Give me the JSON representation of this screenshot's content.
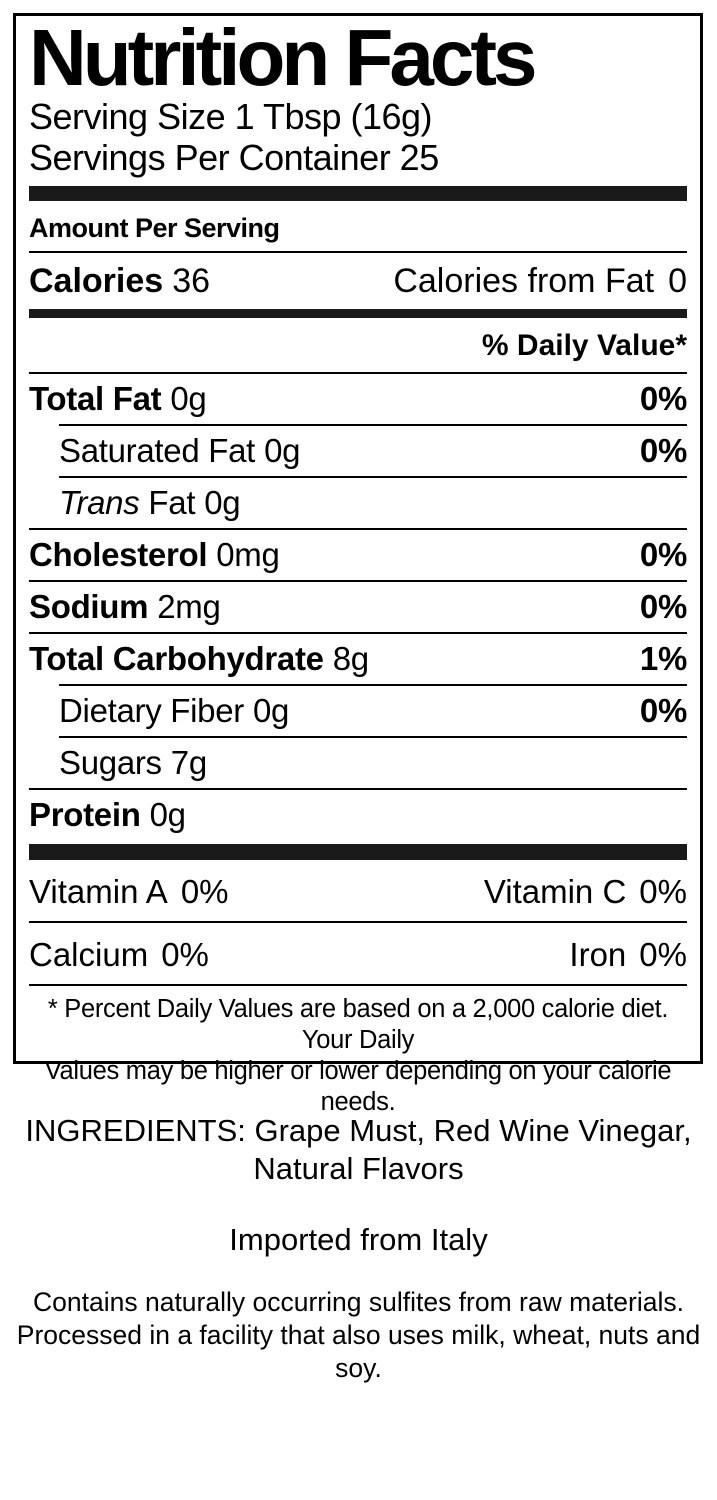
{
  "colors": {
    "text": "#000000",
    "divider_bar": "#1a1a1a",
    "background": "#ffffff"
  },
  "label": {
    "title": "Nutrition Facts",
    "serving_size": "Serving Size 1 Tbsp (16g)",
    "servings_per_container": "Servings Per Container 25",
    "amount_per_serving": "Amount Per Serving",
    "calories_label": "Calories",
    "calories_value": "36",
    "calories_from_fat_label": "Calories from Fat",
    "calories_from_fat_value": "0",
    "daily_value_header": "% Daily Value*",
    "rows": {
      "total_fat": {
        "name": "Total Fat",
        "amount": "0g",
        "dv": "0%"
      },
      "saturated_fat": {
        "name": "Saturated Fat",
        "amount": "0g",
        "dv": "0%"
      },
      "trans_fat": {
        "name_italic": "Trans",
        "name_rest": "Fat",
        "amount": "0g"
      },
      "cholesterol": {
        "name": "Cholesterol",
        "amount": "0mg",
        "dv": "0%"
      },
      "sodium": {
        "name": "Sodium",
        "amount": "2mg",
        "dv": "0%"
      },
      "total_carbohydrate": {
        "name": "Total Carbohydrate",
        "amount": "8g",
        "dv": "1%"
      },
      "dietary_fiber": {
        "name": "Dietary Fiber",
        "amount": "0g",
        "dv": "0%"
      },
      "sugars": {
        "name": "Sugars",
        "amount": "7g"
      },
      "protein": {
        "name": "Protein",
        "amount": "0g"
      }
    },
    "micronutrients": {
      "vitamin_a": {
        "name": "Vitamin A",
        "value": "0%"
      },
      "vitamin_c": {
        "name": "Vitamin C",
        "value": "0%"
      },
      "calcium": {
        "name": "Calcium",
        "value": "0%"
      },
      "iron": {
        "name": "Iron",
        "value": "0%"
      }
    },
    "footnote_line1": "* Percent Daily Values are based on a 2,000 calorie diet. Your Daily",
    "footnote_line2": "Values may be higher or lower depending on your calorie needs."
  },
  "below_label": {
    "ingredients_line1": "INGREDIENTS: Grape Must, Red Wine Vinegar,",
    "ingredients_line2": "Natural Flavors",
    "origin": "Imported from Italy",
    "allergen_line1": "Contains naturally occurring sulfites from raw materials.",
    "allergen_line2": "Processed in a facility that also uses milk, wheat, nuts and soy."
  }
}
